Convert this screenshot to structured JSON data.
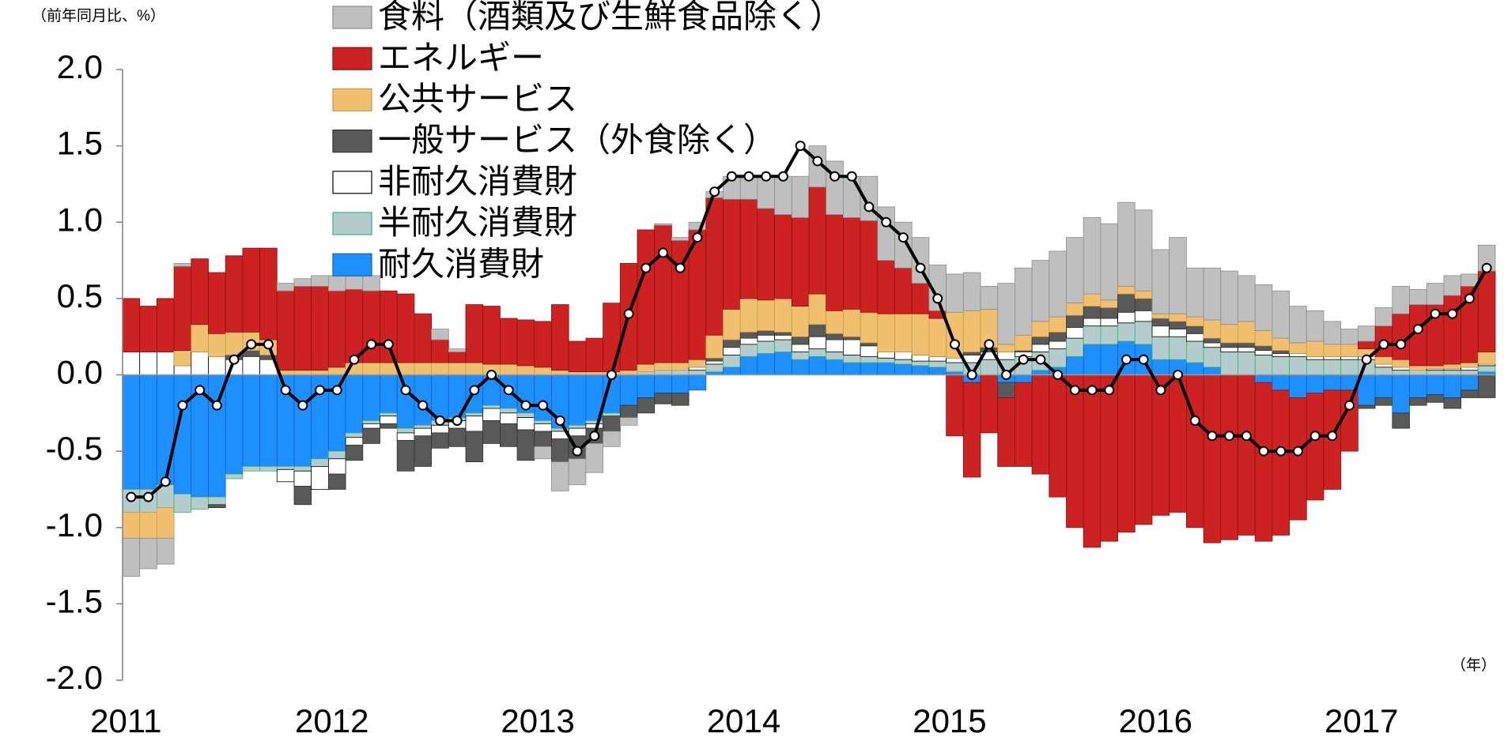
{
  "chart_data": {
    "type": "stacked-bar-line",
    "ylabel": "（前年同月比、%）",
    "xlabel": "（年）",
    "categories": [
      "2011",
      null,
      null,
      null,
      null,
      null,
      null,
      null,
      null,
      null,
      null,
      null,
      "2012",
      null,
      null,
      null,
      null,
      null,
      null,
      null,
      null,
      null,
      null,
      null,
      "2013",
      null,
      null,
      null,
      null,
      null,
      null,
      null,
      null,
      null,
      null,
      null,
      "2014",
      null,
      null,
      null,
      null,
      null,
      null,
      null,
      null,
      null,
      null,
      null,
      "2015",
      null,
      null,
      null,
      null,
      null,
      null,
      null,
      null,
      null,
      null,
      null,
      "2016",
      null,
      null,
      null,
      null,
      null,
      null,
      null,
      null,
      null,
      null,
      null,
      "2017",
      null,
      null,
      null,
      null,
      null,
      null,
      null
    ],
    "ylim": [
      -2,
      2
    ],
    "yticks": [
      {
        "value": 2,
        "label": "2.0"
      },
      {
        "value": 1.5,
        "label": "1.5"
      },
      {
        "value": 1,
        "label": "1.0"
      },
      {
        "value": 0.5,
        "label": "0.5"
      },
      {
        "value": 0,
        "label": "0.0"
      },
      {
        "value": -0.5,
        "label": "-0.5"
      },
      {
        "value": -1,
        "label": "-1.0"
      },
      {
        "value": -1.5,
        "label": "-1.5"
      },
      {
        "value": -2,
        "label": "-2.0"
      }
    ],
    "grid": false,
    "series": [
      {
        "name": "食料（酒類及び生鮮食品除く）",
        "color": "#bfbfbf",
        "edgecolor": "#8c8c8c",
        "values": [
          -0.25,
          -0.2,
          -0.17,
          0.02,
          0,
          0,
          0,
          0,
          0,
          0.05,
          0.05,
          0.07,
          0.1,
          0.1,
          0.1,
          0,
          0,
          0,
          0.07,
          0.02,
          0,
          0,
          0,
          0,
          -0.08,
          -0.19,
          -0.17,
          -0.19,
          -0.1,
          -0.05,
          0,
          0.01,
          0.02,
          0.05,
          0.04,
          0.15,
          0.15,
          0.21,
          0.25,
          0.27,
          0.27,
          0.35,
          0.27,
          0.29,
          0.35,
          0.3,
          0.3,
          0.3,
          0.25,
          0.25,
          0.15,
          0.4,
          0.44,
          0.4,
          0.43,
          0.43,
          0.5,
          0.5,
          0.55,
          0.53,
          0.42,
          0.5,
          0.32,
          0.34,
          0.35,
          0.3,
          0.3,
          0.31,
          0.24,
          0.2,
          0.15,
          0.1,
          0.1,
          0.12,
          0.18,
          0.1,
          0.14,
          0.13,
          0.08,
          0.17
        ]
      },
      {
        "name": "エネルギー",
        "color": "#cc2222",
        "edgecolor": "#8b1010",
        "values": [
          0.35,
          0.3,
          0.35,
          0.55,
          0.43,
          0.4,
          0.5,
          0.55,
          0.6,
          0.52,
          0.55,
          0.55,
          0.5,
          0.48,
          0.47,
          0.47,
          0.45,
          0.32,
          0.15,
          0.07,
          0.38,
          0.38,
          0.3,
          0.3,
          0.3,
          0.43,
          0.2,
          0.22,
          0.45,
          0.7,
          0.88,
          0.9,
          0.8,
          0.85,
          0.9,
          0.72,
          0.65,
          0.6,
          0.55,
          0.58,
          0.7,
          0.63,
          0.6,
          0.6,
          0.35,
          0.3,
          0.2,
          0.05,
          -0.4,
          -0.62,
          -0.38,
          -0.45,
          -0.55,
          -0.65,
          -0.8,
          -1.0,
          -1.13,
          -1.09,
          -1.03,
          -0.98,
          -0.92,
          -0.9,
          -1.0,
          -1.1,
          -1.08,
          -1.05,
          -1.04,
          -0.95,
          -0.8,
          -0.7,
          -0.65,
          -0.4,
          0.05,
          0.2,
          0.3,
          0.4,
          0.4,
          0.45,
          0.5,
          0.53
        ]
      },
      {
        "name": "公共サービス",
        "color": "#f0c070",
        "edgecolor": "#c89a48",
        "values": [
          -0.17,
          -0.17,
          -0.2,
          0.1,
          0.18,
          0.15,
          0.15,
          0.12,
          0.1,
          0.03,
          0.03,
          0.03,
          0.05,
          0.08,
          0.08,
          0.08,
          0.08,
          0.08,
          0.08,
          0.08,
          0.08,
          0.07,
          0.07,
          0.06,
          0.05,
          0.03,
          0.02,
          0.02,
          0.02,
          0.03,
          0.05,
          0.05,
          0.05,
          0.05,
          0.15,
          0.2,
          0.22,
          0.2,
          0.22,
          0.2,
          0.2,
          0.15,
          0.18,
          0.2,
          0.25,
          0.25,
          0.27,
          0.25,
          0.3,
          0.27,
          0.25,
          0.05,
          0.1,
          0.1,
          0.1,
          0.08,
          0.08,
          0.05,
          0.05,
          0.05,
          0.03,
          0.05,
          0.06,
          0.12,
          0.12,
          0.14,
          0.1,
          0.08,
          0.07,
          0.1,
          0.08,
          0.08,
          0.05,
          0.05,
          0.05,
          0.03,
          0.02,
          0.03,
          0.03,
          0.08
        ]
      },
      {
        "name": "一般サービス（外食除く）",
        "color": "#595959",
        "edgecolor": "#333333",
        "values": [
          0,
          0,
          0,
          0,
          0,
          -0.02,
          0.03,
          0.04,
          0.03,
          0,
          -0.12,
          0,
          -0.1,
          -0.1,
          -0.1,
          -0.03,
          -0.2,
          -0.2,
          -0.1,
          -0.12,
          -0.2,
          -0.15,
          -0.15,
          -0.2,
          -0.1,
          -0.15,
          -0.15,
          -0.1,
          -0.1,
          -0.08,
          -0.1,
          -0.07,
          -0.08,
          0,
          0.02,
          0.05,
          0.04,
          0.03,
          0.02,
          0.05,
          0.08,
          0.04,
          0.02,
          0.02,
          0,
          0,
          0,
          0,
          0,
          0.02,
          0.03,
          -0.1,
          0.01,
          0.05,
          0.06,
          0.08,
          0.08,
          0.07,
          0.12,
          0.08,
          0.05,
          0.05,
          0.05,
          0.03,
          0.03,
          0.03,
          0.03,
          0.02,
          0,
          0,
          0,
          0,
          -0.02,
          -0.05,
          -0.1,
          -0.05,
          -0.05,
          -0.07,
          -0.05,
          -0.15
        ]
      },
      {
        "name": "非耐久消費財",
        "color": "#ffffff",
        "edgecolor": "#000000",
        "values": [
          0.15,
          0.15,
          0.15,
          0.06,
          0.15,
          0.12,
          0.1,
          0.12,
          0.1,
          -0.08,
          -0.1,
          -0.15,
          -0.1,
          -0.05,
          -0.03,
          -0.05,
          -0.05,
          -0.05,
          -0.05,
          -0.05,
          -0.1,
          -0.08,
          -0.07,
          -0.08,
          -0.05,
          -0.05,
          -0.05,
          -0.03,
          0,
          0,
          0,
          0,
          0,
          0.02,
          0.02,
          0.05,
          0.04,
          0.04,
          0.03,
          0.05,
          0.08,
          0.08,
          0.1,
          0.07,
          0.04,
          0.05,
          0.04,
          0.03,
          0.03,
          0.05,
          0.05,
          0.05,
          0.03,
          0.05,
          0.05,
          0.07,
          0.05,
          0.05,
          0.07,
          0.07,
          0.07,
          0.05,
          0.05,
          0.03,
          0.03,
          0.03,
          0.03,
          0.02,
          0.02,
          0.02,
          0.02,
          0.02,
          0.02,
          0.02,
          0.02,
          0,
          0.01,
          0.01,
          0.02,
          0.01
        ]
      },
      {
        "name": "半耐久消費財",
        "color": "#b4cccc",
        "edgecolor": "#3cb371",
        "values": [
          -0.15,
          -0.15,
          -0.15,
          -0.12,
          -0.08,
          -0.05,
          -0.03,
          -0.03,
          -0.03,
          -0.02,
          -0.03,
          -0.05,
          -0.05,
          -0.03,
          -0.02,
          -0.02,
          -0.03,
          -0.02,
          -0.03,
          -0.02,
          -0.02,
          -0.02,
          -0.03,
          -0.03,
          -0.02,
          -0.02,
          -0.02,
          -0.02,
          -0.02,
          0,
          0.02,
          0.03,
          0.03,
          0.03,
          0.05,
          0.08,
          0.08,
          0.08,
          0.08,
          0.05,
          0.05,
          0.05,
          0.05,
          0.04,
          0.03,
          0.03,
          0.03,
          0.04,
          0.06,
          0.08,
          0.1,
          0.1,
          0.12,
          0.12,
          0.12,
          0.12,
          0.12,
          0.12,
          0.12,
          0.15,
          0.15,
          0.15,
          0.14,
          0.13,
          0.15,
          0.15,
          0.13,
          0.12,
          0.12,
          0.1,
          0.1,
          0.1,
          0.1,
          0.05,
          0.03,
          0.03,
          0.03,
          0.03,
          0.03,
          0.04
        ]
      },
      {
        "name": "耐久消費財",
        "color": "#1e8fff",
        "edgecolor": "#1060c0",
        "values": [
          -0.75,
          -0.75,
          -0.72,
          -0.78,
          -0.8,
          -0.8,
          -0.65,
          -0.6,
          -0.6,
          -0.6,
          -0.6,
          -0.55,
          -0.5,
          -0.38,
          -0.3,
          -0.25,
          -0.35,
          -0.33,
          -0.3,
          -0.28,
          -0.25,
          -0.2,
          -0.22,
          -0.25,
          -0.3,
          -0.35,
          -0.33,
          -0.3,
          -0.25,
          -0.2,
          -0.15,
          -0.12,
          -0.12,
          -0.1,
          0.02,
          0.05,
          0.12,
          0.14,
          0.15,
          0.1,
          0.12,
          0.1,
          0.08,
          0.08,
          0.08,
          0.07,
          0.06,
          0.05,
          0.02,
          -0.05,
          0,
          -0.05,
          -0.05,
          0.03,
          0.05,
          0.12,
          0.2,
          0.2,
          0.22,
          0.2,
          0.1,
          0.1,
          0.08,
          0.05,
          0,
          0,
          -0.05,
          -0.1,
          -0.15,
          -0.12,
          -0.1,
          -0.1,
          -0.2,
          -0.15,
          -0.25,
          -0.15,
          -0.13,
          -0.15,
          -0.1,
          0.02
        ]
      }
    ],
    "line": {
      "color": "#000000",
      "values": [
        -0.8,
        -0.8,
        -0.7,
        -0.2,
        -0.1,
        -0.2,
        0.1,
        0.2,
        0.2,
        -0.1,
        -0.2,
        -0.1,
        -0.1,
        0.1,
        0.2,
        0.2,
        -0.1,
        -0.2,
        -0.3,
        -0.3,
        -0.1,
        0.0,
        -0.1,
        -0.2,
        -0.2,
        -0.3,
        -0.5,
        -0.4,
        0.0,
        0.4,
        0.7,
        0.8,
        0.7,
        0.9,
        1.2,
        1.3,
        1.3,
        1.3,
        1.3,
        1.5,
        1.4,
        1.3,
        1.3,
        1.1,
        1.0,
        0.9,
        0.7,
        0.5,
        0.2,
        0.0,
        0.2,
        0.0,
        0.1,
        0.1,
        0.0,
        -0.1,
        -0.1,
        -0.1,
        0.1,
        0.1,
        -0.1,
        0.0,
        -0.3,
        -0.4,
        -0.4,
        -0.4,
        -0.5,
        -0.5,
        -0.5,
        -0.4,
        -0.4,
        -0.2,
        0.1,
        0.2,
        0.2,
        0.3,
        0.4,
        0.4,
        0.5,
        0.7
      ]
    }
  }
}
